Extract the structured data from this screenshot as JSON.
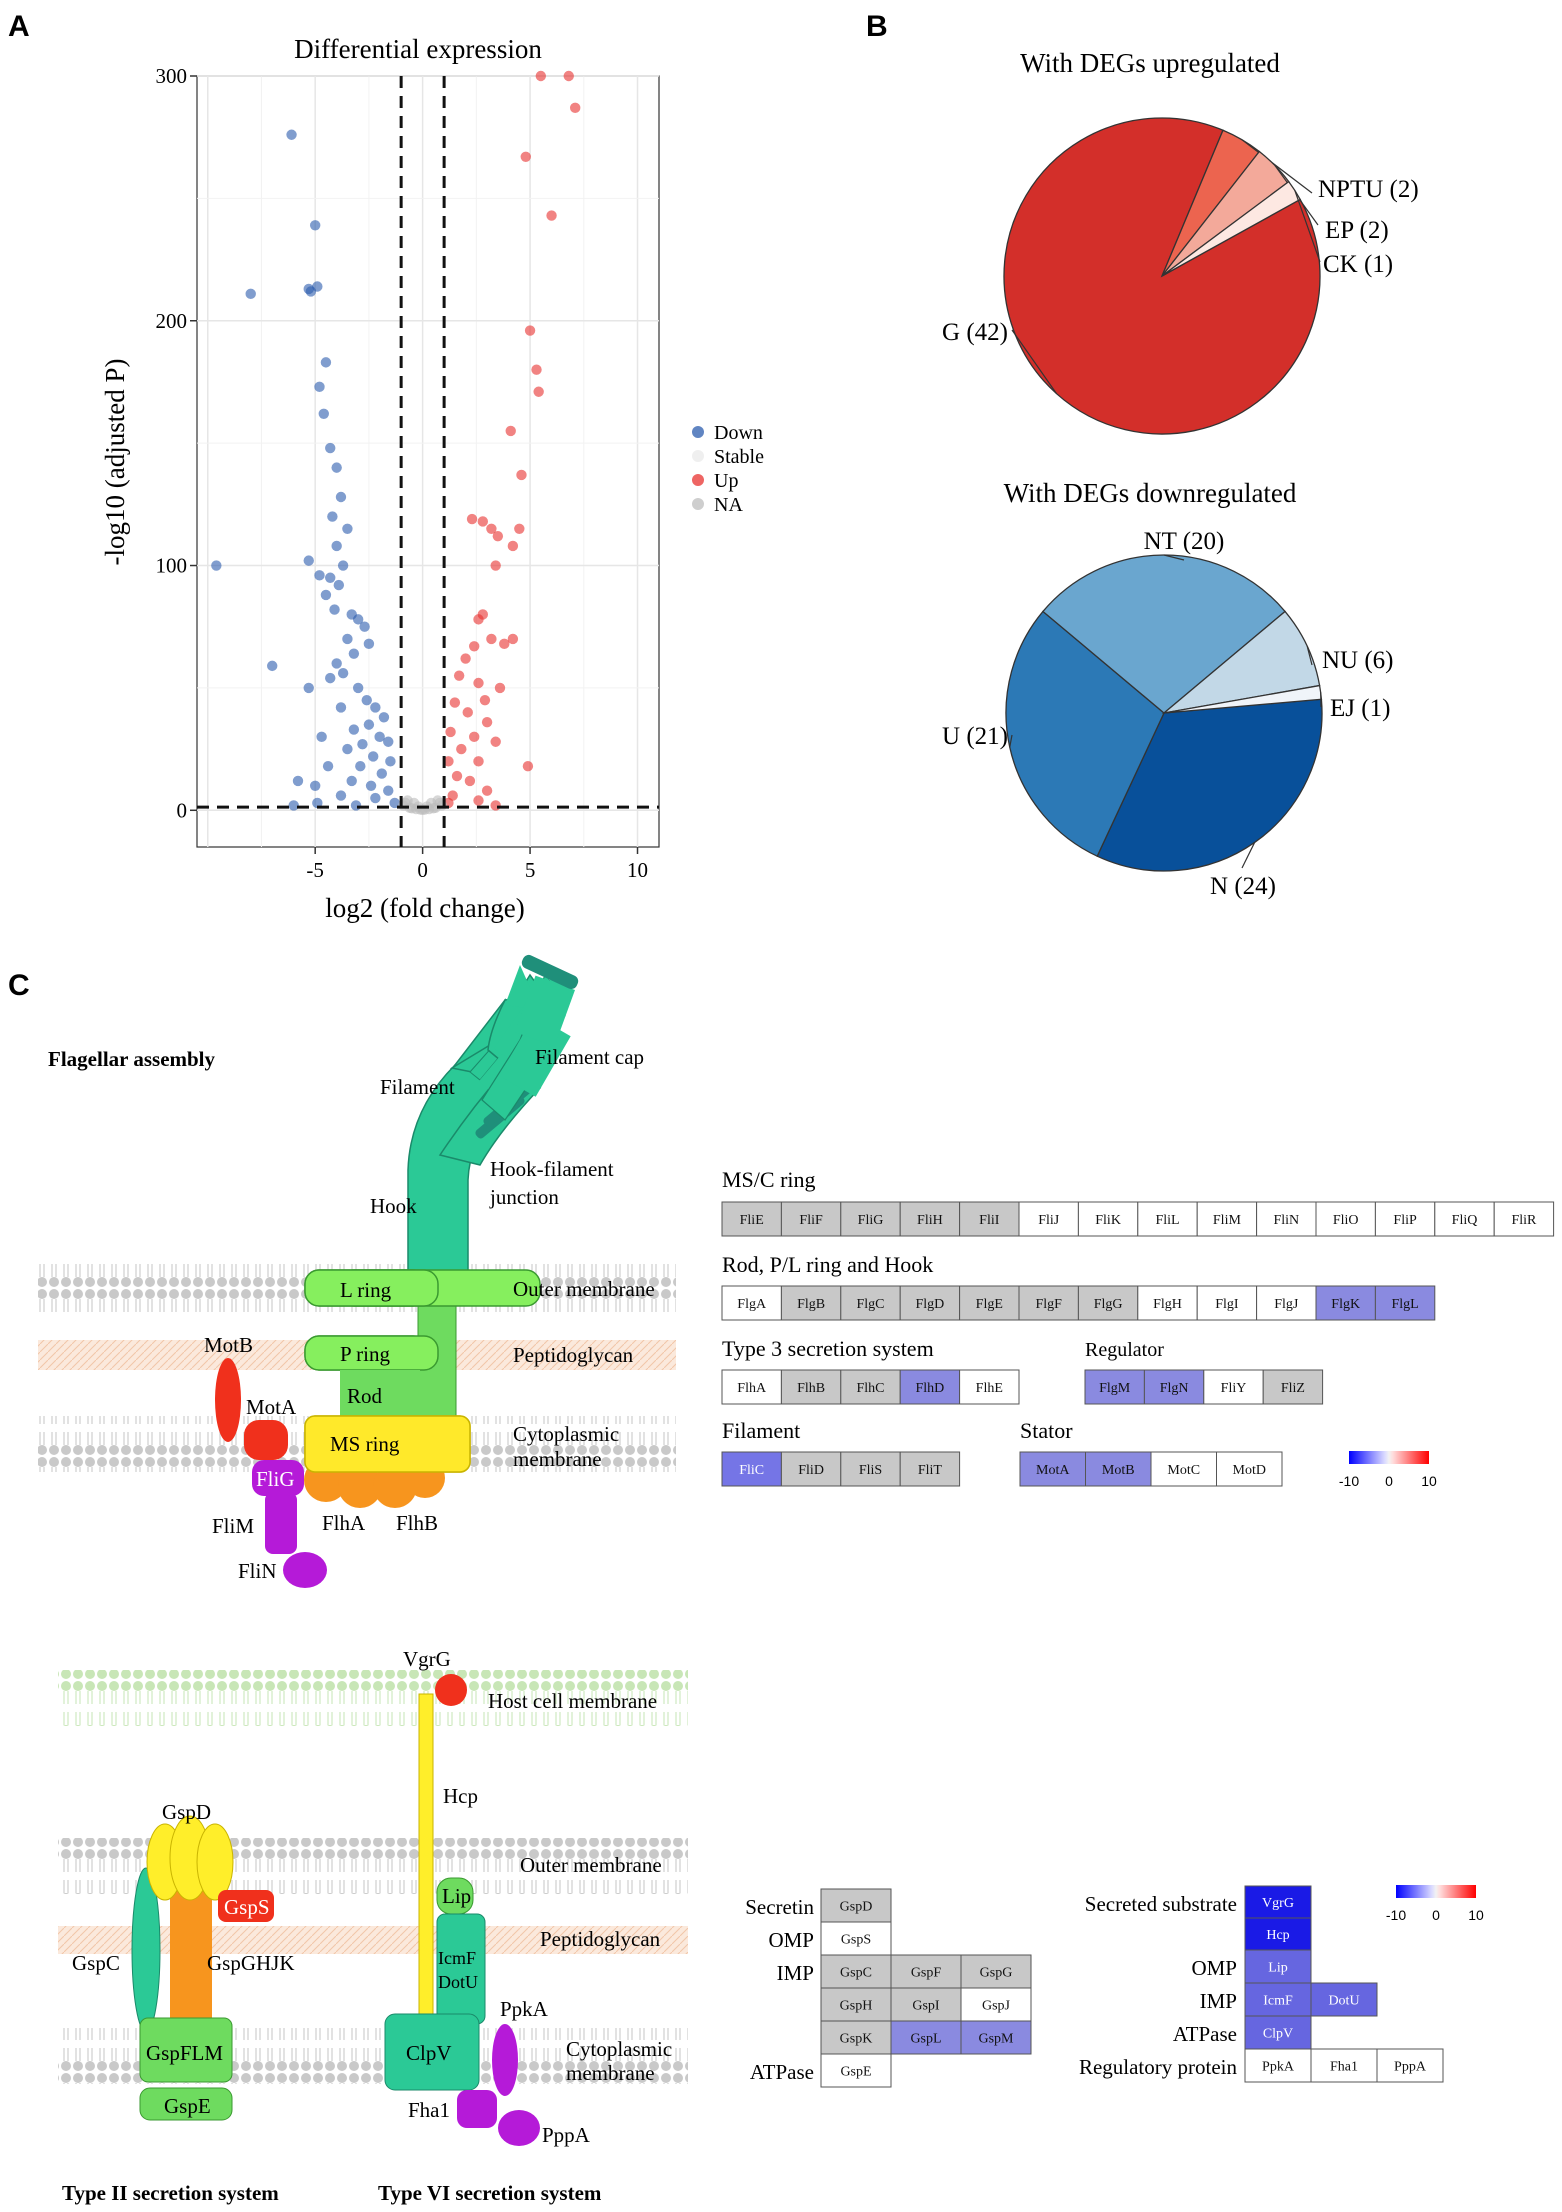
{
  "panel_labels": [
    "A",
    "B",
    "C"
  ],
  "colors": {
    "down": "#2b5cad",
    "up": "#e8312f",
    "stable": "#bdbdbd",
    "pie_up": [
      "#d32f2a",
      "#ec644f",
      "#f3a99a",
      "#fde8e2"
    ],
    "pie_down": [
      "#08509a",
      "#2c79b6",
      "#6aa6cf",
      "#c2d8e7",
      "#f0f4f9"
    ],
    "gene_gray": "#c8c8c8",
    "gene_white": "#ffffff",
    "gene_blue": "#8a8ae0"
  },
  "chart_data": [
    {
      "type": "scatter",
      "title": "Differential expression",
      "xlabel": "log2 (fold change)",
      "ylabel": "-log10 (adjusted P)",
      "xlim": [
        -10.5,
        11
      ],
      "ylim": [
        -15,
        300
      ],
      "xticks": [
        "-5",
        "0",
        "5",
        "10"
      ],
      "yticks": [
        "0",
        "100",
        "200",
        "300"
      ],
      "thresholds": {
        "x": [
          -1,
          1
        ],
        "y": 1.3
      },
      "legend": {
        "position": "right",
        "entries": [
          "Down",
          "Stable",
          "Up",
          "NA"
        ]
      },
      "series": [
        {
          "name": "Down",
          "points": [
            [
              -9.6,
              100
            ],
            [
              -6.1,
              276
            ],
            [
              -8,
              211
            ],
            [
              -5,
              239
            ],
            [
              -5.3,
              213
            ],
            [
              -4.9,
              214
            ],
            [
              -5.2,
              212
            ],
            [
              -4.5,
              183
            ],
            [
              -4.8,
              173
            ],
            [
              -4.6,
              162
            ],
            [
              -4.3,
              148
            ],
            [
              -4.0,
              140
            ],
            [
              -3.8,
              128
            ],
            [
              -4.2,
              120
            ],
            [
              -3.5,
              115
            ],
            [
              -4.0,
              108
            ],
            [
              -3.7,
              100
            ],
            [
              -5.3,
              102
            ],
            [
              -4.8,
              96
            ],
            [
              -4.3,
              95
            ],
            [
              -3.9,
              92
            ],
            [
              -4.5,
              88
            ],
            [
              -4.1,
              82
            ],
            [
              -3.3,
              80
            ],
            [
              -3.0,
              78
            ],
            [
              -2.7,
              75
            ],
            [
              -3.5,
              70
            ],
            [
              -2.5,
              68
            ],
            [
              -3.2,
              64
            ],
            [
              -4.0,
              60
            ],
            [
              -7.0,
              59
            ],
            [
              -5.3,
              50
            ],
            [
              -4.3,
              54
            ],
            [
              -3.7,
              56
            ],
            [
              -3.0,
              50
            ],
            [
              -2.6,
              45
            ],
            [
              -2.2,
              42
            ],
            [
              -3.8,
              42
            ],
            [
              -1.8,
              38
            ],
            [
              -2.5,
              35
            ],
            [
              -3.2,
              33
            ],
            [
              -2.0,
              30
            ],
            [
              -4.7,
              30
            ],
            [
              -1.6,
              28
            ],
            [
              -2.8,
              27
            ],
            [
              -3.5,
              25
            ],
            [
              -2.3,
              22
            ],
            [
              -1.5,
              20
            ],
            [
              -2.9,
              18
            ],
            [
              -4.4,
              18
            ],
            [
              -1.9,
              15
            ],
            [
              -3.3,
              12
            ],
            [
              -2.4,
              10
            ],
            [
              -5.0,
              10
            ],
            [
              -1.6,
              8
            ],
            [
              -3.8,
              6
            ],
            [
              -5.8,
              12
            ],
            [
              -2.2,
              5
            ],
            [
              -4.9,
              3
            ],
            [
              -1.3,
              3
            ],
            [
              -6.0,
              2
            ],
            [
              -3.1,
              2
            ]
          ]
        },
        {
          "name": "Up",
          "points": [
            [
              5.5,
              300
            ],
            [
              6.8,
              300
            ],
            [
              7.1,
              287
            ],
            [
              4.8,
              267
            ],
            [
              6.0,
              243
            ],
            [
              5.0,
              196
            ],
            [
              5.3,
              180
            ],
            [
              5.4,
              171
            ],
            [
              4.1,
              155
            ],
            [
              4.6,
              137
            ],
            [
              3.2,
              115
            ],
            [
              3.5,
              112
            ],
            [
              4.5,
              115
            ],
            [
              4.2,
              108
            ],
            [
              2.3,
              119
            ],
            [
              2.8,
              118
            ],
            [
              3.4,
              100
            ],
            [
              2.8,
              80
            ],
            [
              2.6,
              78
            ],
            [
              3.2,
              70
            ],
            [
              4.2,
              70
            ],
            [
              2.4,
              67
            ],
            [
              3.8,
              68
            ],
            [
              2.0,
              62
            ],
            [
              1.7,
              55
            ],
            [
              2.6,
              52
            ],
            [
              3.6,
              50
            ],
            [
              2.9,
              45
            ],
            [
              1.5,
              44
            ],
            [
              2.1,
              40
            ],
            [
              3.0,
              36
            ],
            [
              1.3,
              32
            ],
            [
              2.4,
              30
            ],
            [
              3.4,
              28
            ],
            [
              1.8,
              25
            ],
            [
              1.2,
              20
            ],
            [
              2.6,
              20
            ],
            [
              4.9,
              18
            ],
            [
              1.6,
              14
            ],
            [
              2.2,
              12
            ],
            [
              3.0,
              8
            ],
            [
              1.4,
              6
            ],
            [
              2.6,
              4
            ],
            [
              1.2,
              3
            ],
            [
              3.4,
              2
            ]
          ]
        },
        {
          "name": "Stable",
          "points": [
            [
              -0.9,
              2
            ],
            [
              -0.6,
              1
            ],
            [
              -0.3,
              0.5
            ],
            [
              0,
              0.2
            ],
            [
              0.3,
              0.5
            ],
            [
              0.6,
              1
            ],
            [
              0.9,
              2
            ],
            [
              -0.7,
              4
            ],
            [
              0.7,
              4
            ],
            [
              -0.4,
              3
            ],
            [
              0.4,
              3
            ],
            [
              -0.2,
              1.5
            ],
            [
              0.2,
              1.5
            ],
            [
              -0.5,
              0.8
            ],
            [
              0.5,
              0.8
            ],
            [
              0.1,
              0.3
            ],
            [
              -0.1,
              0.3
            ],
            [
              -0.8,
              3
            ],
            [
              0.8,
              3
            ]
          ]
        }
      ]
    },
    {
      "type": "pie",
      "title": "With DEGs upregulated",
      "labels": [
        "G",
        "NPTU",
        "EP",
        "CK"
      ],
      "values": [
        42,
        2,
        2,
        1
      ],
      "display_labels": [
        "G (42)",
        "NPTU (2)",
        "EP (2)",
        "CK (1)"
      ]
    },
    {
      "type": "pie",
      "title": "With DEGs downregulated",
      "labels": [
        "N",
        "U",
        "NT",
        "NU",
        "EJ"
      ],
      "values": [
        24,
        21,
        20,
        6,
        1
      ],
      "display_labels": [
        "N (24)",
        "U (21)",
        "NT (20)",
        "NU (6)",
        "EJ (1)"
      ]
    }
  ],
  "diagram_flagellar": {
    "title": "Flagellar assembly",
    "labels": {
      "filament_cap": "Filament cap",
      "filament": "Filament",
      "hook_filament": "Hook-filament",
      "junction": "junction",
      "hook": "Hook",
      "outer_membrane": "Outer membrane",
      "peptidoglycan": "Peptidoglycan",
      "cytoplasmic": "Cytoplasmic",
      "membrane": "membrane",
      "l_ring": "L ring",
      "p_ring": "P ring",
      "rod": "Rod",
      "ms_ring": "MS ring",
      "motb": "MotB",
      "mota": "MotA",
      "flig": "FliG",
      "flim": "FliM",
      "flin": "FliN",
      "flha": "FlhA",
      "flhb": "FlhB"
    }
  },
  "diagram_secretion": {
    "type2_title": "Type II secretion system",
    "type6_title": "Type VI secretion system",
    "labels": {
      "vgrg": "VgrG",
      "host_membrane": "Host cell membrane",
      "hcp": "Hcp",
      "gspd": "GspD",
      "outer_membrane": "Outer membrane",
      "lip": "Lip",
      "gsps": "GspS",
      "peptidoglycan": "Peptidoglycan",
      "gspc": "GspC",
      "gspghjk": "GspGHJK",
      "icmf": "IcmF",
      "dotu": "DotU",
      "ppka": "PpkA",
      "gspflm": "GspFLM",
      "clpv": "ClpV",
      "cytoplasmic": "Cytoplasmic",
      "membrane": "membrane",
      "fha1": "Fha1",
      "pppa": "PppA",
      "gspe": "GspE"
    }
  },
  "gene_tables_flagellar": {
    "ms_c_ring": {
      "title": "MS/C ring",
      "genes": [
        [
          "FliE",
          "gray"
        ],
        [
          "FliF",
          "gray"
        ],
        [
          "FliG",
          "gray"
        ],
        [
          "FliH",
          "gray"
        ],
        [
          "FliI",
          "gray"
        ],
        [
          "FliJ",
          "white"
        ],
        [
          "FliK",
          "white"
        ],
        [
          "FliL",
          "white"
        ],
        [
          "FliM",
          "white"
        ],
        [
          "FliN",
          "white"
        ],
        [
          "FliO",
          "white"
        ],
        [
          "FliP",
          "white"
        ],
        [
          "FliQ",
          "white"
        ],
        [
          "FliR",
          "white"
        ]
      ]
    },
    "rod_ring_hook": {
      "title": "Rod, P/L ring and Hook",
      "genes": [
        [
          "FlgA",
          "white"
        ],
        [
          "FlgB",
          "gray"
        ],
        [
          "FlgC",
          "gray"
        ],
        [
          "FlgD",
          "gray"
        ],
        [
          "FlgE",
          "gray"
        ],
        [
          "FlgF",
          "gray"
        ],
        [
          "FlgG",
          "gray"
        ],
        [
          "FlgH",
          "white"
        ],
        [
          "FlgI",
          "white"
        ],
        [
          "FlgJ",
          "white"
        ],
        [
          "FlgK",
          "blue"
        ],
        [
          "FlgL",
          "blue"
        ]
      ]
    },
    "t3ss": {
      "title": "Type 3 secretion system",
      "genes": [
        [
          "FlhA",
          "white"
        ],
        [
          "FlhB",
          "gray"
        ],
        [
          "FlhC",
          "gray"
        ],
        [
          "FlhD",
          "blue"
        ],
        [
          "FlhE",
          "white"
        ]
      ]
    },
    "regulator": {
      "title": "Regulator",
      "genes": [
        [
          "FlgM",
          "blue"
        ],
        [
          "FlgN",
          "blue"
        ],
        [
          "FliY",
          "white"
        ],
        [
          "FliZ",
          "gray"
        ]
      ]
    },
    "filament": {
      "title": "Filament",
      "genes": [
        [
          "FliC",
          "blue2"
        ],
        [
          "FliD",
          "gray"
        ],
        [
          "FliS",
          "gray"
        ],
        [
          "FliT",
          "gray"
        ]
      ]
    },
    "stator": {
      "title": "Stator",
      "genes": [
        [
          "MotA",
          "blue"
        ],
        [
          "MotB",
          "blue"
        ],
        [
          "MotC",
          "white"
        ],
        [
          "MotD",
          "white"
        ]
      ]
    },
    "scale": {
      "min": "-10",
      "mid": "0",
      "max": "10"
    }
  },
  "gene_tables_secretion": {
    "t2": {
      "rows": [
        {
          "label": "Secretin",
          "genes": [
            [
              "GspD",
              "gray"
            ]
          ]
        },
        {
          "label": "OMP",
          "genes": [
            [
              "GspS",
              "white"
            ]
          ]
        },
        {
          "label": "IMP",
          "genes": [
            [
              "GspC",
              "gray"
            ],
            [
              "GspF",
              "gray"
            ],
            [
              "GspG",
              "gray"
            ]
          ]
        },
        {
          "label": "",
          "genes": [
            [
              "GspH",
              "gray"
            ],
            [
              "GspI",
              "gray"
            ],
            [
              "GspJ",
              "white"
            ]
          ]
        },
        {
          "label": "",
          "genes": [
            [
              "GspK",
              "gray"
            ],
            [
              "GspL",
              "blue"
            ],
            [
              "GspM",
              "blue"
            ]
          ]
        },
        {
          "label": "ATPase",
          "genes": [
            [
              "GspE",
              "white"
            ]
          ]
        }
      ]
    },
    "t6": {
      "rows": [
        {
          "label": "Secreted substrate",
          "genes": [
            [
              "VgrG",
              "deep"
            ],
            [
              "Hcp",
              "deep"
            ]
          ]
        },
        {
          "label": "OMP",
          "genes": [
            [
              "Lip",
              "mid"
            ]
          ]
        },
        {
          "label": "IMP",
          "genes": [
            [
              "IcmF",
              "mid"
            ],
            [
              "DotU",
              "mid"
            ]
          ]
        },
        {
          "label": "ATPase",
          "genes": [
            [
              "ClpV",
              "mid"
            ]
          ]
        },
        {
          "label": "Regulatory protein",
          "genes": [
            [
              "PpkA",
              "white"
            ],
            [
              "Fha1",
              "white"
            ],
            [
              "PppA",
              "white"
            ]
          ]
        }
      ]
    },
    "scale": {
      "min": "-10",
      "mid": "0",
      "max": "10"
    }
  }
}
